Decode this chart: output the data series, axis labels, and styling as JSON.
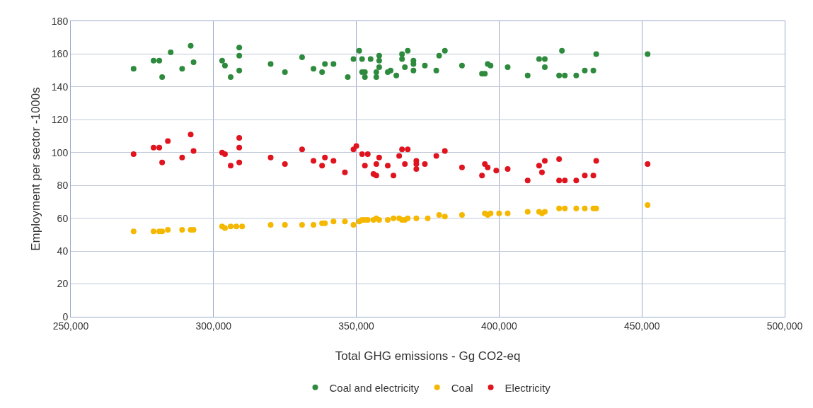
{
  "chart_data": {
    "type": "scatter",
    "xlabel": "Total GHG emissions - Gg CO2-eq",
    "ylabel": "Employment per sector -1000s",
    "xlim": [
      250000,
      500000
    ],
    "xticks": [
      {
        "value": 250000,
        "label": "250,000"
      },
      {
        "value": 300000,
        "label": "300,000"
      },
      {
        "value": 350000,
        "label": "350,000"
      },
      {
        "value": 400000,
        "label": "400,000"
      },
      {
        "value": 450000,
        "label": "450,000"
      },
      {
        "value": 500000,
        "label": "500,000"
      }
    ],
    "ylim": [
      0,
      180
    ],
    "yticks": [
      0,
      20,
      40,
      60,
      80,
      100,
      120,
      140,
      160,
      180
    ],
    "grid": true,
    "legend": "bottom",
    "marker": "circle",
    "series": [
      {
        "name": "Coal and electricity",
        "color": "#2e8b3e",
        "x": [
          272000,
          279000,
          281000,
          282000,
          285000,
          289000,
          292000,
          293000,
          303000,
          304000,
          306000,
          309000,
          309000,
          309000,
          320000,
          325000,
          331000,
          335000,
          338000,
          339000,
          342000,
          347000,
          349000,
          351000,
          352000,
          352000,
          355000,
          353000,
          353000,
          357000,
          357000,
          358000,
          358000,
          358000,
          361000,
          362000,
          364000,
          366000,
          366000,
          368000,
          367000,
          370000,
          370000,
          370000,
          374000,
          378000,
          379000,
          381000,
          387000,
          394000,
          395000,
          396000,
          397000,
          403000,
          410000,
          414000,
          416000,
          416000,
          422000,
          421000,
          423000,
          427000,
          430000,
          433000,
          434000,
          452000
        ],
        "values": [
          151,
          156,
          156,
          146,
          161,
          151,
          165,
          155,
          156,
          153,
          146,
          159,
          150,
          164,
          154,
          149,
          158,
          151,
          149,
          154,
          154,
          146,
          157,
          162,
          157,
          149,
          157,
          146,
          149,
          149,
          146,
          159,
          156,
          152,
          149,
          150,
          147,
          157,
          160,
          162,
          152,
          156,
          154,
          150,
          153,
          150,
          159,
          162,
          153,
          148,
          148,
          154,
          153,
          152,
          147,
          157,
          157,
          152,
          162,
          147,
          147,
          147,
          150,
          150,
          160,
          160
        ]
      },
      {
        "name": "Coal",
        "color": "#f5b800",
        "x": [
          272000,
          279000,
          281000,
          282000,
          284000,
          289000,
          292000,
          293000,
          303000,
          304000,
          306000,
          308000,
          310000,
          320000,
          325000,
          331000,
          335000,
          338000,
          339000,
          342000,
          346000,
          349000,
          351000,
          352000,
          353000,
          354000,
          356000,
          357000,
          358000,
          361000,
          363000,
          365000,
          366000,
          368000,
          367000,
          371000,
          375000,
          379000,
          381000,
          387000,
          395000,
          396000,
          397000,
          400000,
          403000,
          410000,
          414000,
          416000,
          415000,
          421000,
          423000,
          427000,
          430000,
          433000,
          434000,
          452000
        ],
        "values": [
          52,
          52,
          52,
          52,
          53,
          53,
          53,
          53,
          55,
          54,
          55,
          55,
          55,
          56,
          56,
          56,
          56,
          57,
          57,
          58,
          58,
          56,
          58,
          59,
          59,
          59,
          59,
          60,
          59,
          59,
          60,
          60,
          59,
          60,
          59,
          60,
          60,
          62,
          61,
          62,
          63,
          62,
          63,
          63,
          63,
          64,
          64,
          64,
          63,
          66,
          66,
          66,
          66,
          66,
          66,
          68
        ]
      },
      {
        "name": "Electricity",
        "color": "#e0141e",
        "x": [
          272000,
          279000,
          281000,
          282000,
          284000,
          289000,
          292000,
          293000,
          303000,
          304000,
          306000,
          309000,
          309000,
          309000,
          320000,
          325000,
          331000,
          335000,
          338000,
          339000,
          342000,
          346000,
          349000,
          350000,
          352000,
          353000,
          354000,
          356000,
          357000,
          357000,
          358000,
          361000,
          363000,
          365000,
          366000,
          368000,
          367000,
          371000,
          371000,
          371000,
          374000,
          378000,
          381000,
          387000,
          394000,
          395000,
          396000,
          399000,
          403000,
          410000,
          414000,
          416000,
          415000,
          421000,
          421000,
          423000,
          427000,
          430000,
          433000,
          434000,
          452000
        ],
        "values": [
          99,
          103,
          103,
          94,
          107,
          97,
          111,
          101,
          100,
          99,
          92,
          103,
          94,
          109,
          97,
          93,
          102,
          95,
          92,
          97,
          95,
          88,
          102,
          104,
          99,
          92,
          99,
          87,
          93,
          86,
          97,
          92,
          86,
          98,
          102,
          102,
          93,
          95,
          93,
          90,
          93,
          98,
          101,
          91,
          86,
          93,
          91,
          89,
          90,
          83,
          92,
          95,
          88,
          96,
          83,
          83,
          83,
          86,
          86,
          95,
          93
        ]
      }
    ]
  }
}
